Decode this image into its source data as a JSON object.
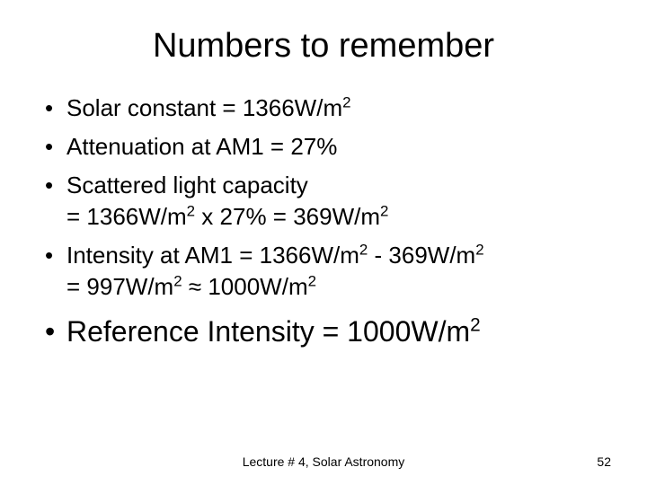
{
  "slide": {
    "title": "Numbers to remember",
    "bullets": [
      {
        "prefix": "Solar constant = 1366W/m",
        "sup1": "2",
        "mid": "",
        "sup2": "",
        "suffix": "",
        "size": "normal"
      },
      {
        "prefix": "Attenuation at AM1 = 27%",
        "sup1": "",
        "mid": "",
        "sup2": "",
        "suffix": "",
        "size": "normal"
      },
      {
        "prefix": "Scattered light capacity\n= 1366W/m",
        "sup1": "2",
        "mid": " x 27% = 369W/m",
        "sup2": "2",
        "suffix": "",
        "size": "normal"
      },
      {
        "prefix": "Intensity at AM1 = 1366W/m",
        "sup1": "2",
        "mid": " - 369W/m",
        "sup2": "2",
        "suffix": "\n= 997W/m",
        "sup3": "2",
        "tail": " ≈ 1000W/m",
        "sup4": "2",
        "size": "normal"
      },
      {
        "prefix": "Reference Intensity = 1000W/m",
        "sup1": "2",
        "mid": "",
        "sup2": "",
        "suffix": "",
        "size": "large"
      }
    ],
    "footer": "Lecture # 4, Solar Astronomy",
    "page_number": "52"
  },
  "style": {
    "background_color": "#ffffff",
    "text_color": "#000000",
    "title_fontsize": 38,
    "bullet_fontsize": 26,
    "bullet_large_fontsize": 32,
    "footer_fontsize": 14,
    "font_family": "Arial"
  }
}
